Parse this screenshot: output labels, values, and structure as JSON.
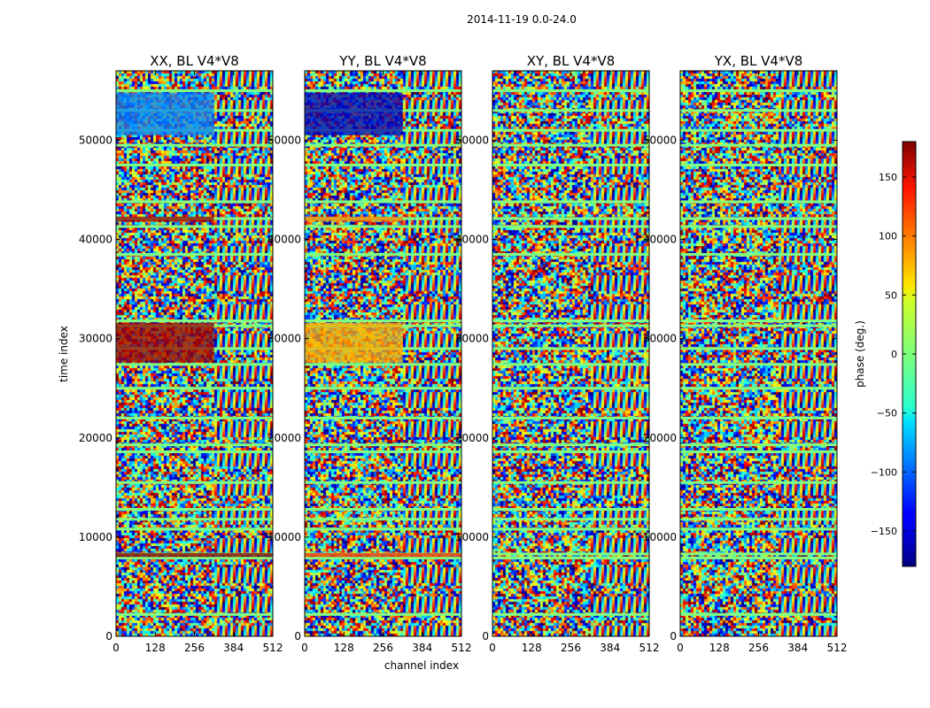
{
  "chart_data": {
    "type": "heatmap",
    "suptitle": "2014-11-19 0.0-24.0",
    "xlabel": "channel index",
    "ylabel": "time index",
    "xlim": [
      0,
      512
    ],
    "ylim": [
      0,
      57000
    ],
    "xticks": [
      0,
      128,
      256,
      384,
      512
    ],
    "yticks": [
      0,
      10000,
      20000,
      30000,
      40000,
      50000
    ],
    "ytick_labels": [
      "0",
      "10000",
      "20000",
      "30000",
      "40000",
      "50000"
    ],
    "colormap": "jet",
    "colorbar": {
      "label": "phase (deg.)",
      "range": [
        -180,
        180
      ],
      "ticks": [
        -150,
        -100,
        -50,
        0,
        50,
        100,
        150
      ],
      "tick_labels": [
        "−150",
        "−100",
        "−50",
        "0",
        "50",
        "100",
        "150"
      ]
    },
    "panels": [
      {
        "title": "XX, BL V4*V8",
        "id": "xx"
      },
      {
        "title": "YY, BL V4*V8",
        "id": "yy"
      },
      {
        "title": "XY, BL V4*V8",
        "id": "xy"
      },
      {
        "title": "YX, BL V4*V8",
        "id": "yx"
      }
    ],
    "band_rows": [
      2200,
      7900,
      8300,
      10800,
      11800,
      12800,
      15500,
      18600,
      19300,
      22000,
      25000,
      27400,
      29000,
      31300,
      31800,
      38500,
      41300,
      42100,
      43800,
      47500,
      49500,
      51000,
      53000,
      55000
    ],
    "coherent_regions": [
      {
        "panel": "xx",
        "t0": 27600,
        "t1": 31600,
        "c0": 0,
        "c1": 320,
        "phase_deg": 170
      },
      {
        "panel": "xx",
        "t0": 41800,
        "t1": 42300,
        "c0": 0,
        "c1": 320,
        "phase_deg": 170
      },
      {
        "panel": "xx",
        "t0": 8000,
        "t1": 8400,
        "c0": 0,
        "c1": 512,
        "phase_deg": 175
      },
      {
        "panel": "xx",
        "t0": 50500,
        "t1": 54800,
        "c0": 0,
        "c1": 320,
        "phase_deg": -90
      },
      {
        "panel": "yy",
        "t0": 27600,
        "t1": 31600,
        "c0": 0,
        "c1": 320,
        "phase_deg": 75
      },
      {
        "panel": "yy",
        "t0": 41800,
        "t1": 42300,
        "c0": 0,
        "c1": 320,
        "phase_deg": 90
      },
      {
        "panel": "yy",
        "t0": 8000,
        "t1": 8400,
        "c0": 0,
        "c1": 512,
        "phase_deg": 120
      },
      {
        "panel": "yy",
        "t0": 50500,
        "t1": 54800,
        "c0": 0,
        "c1": 320,
        "phase_deg": -160
      }
    ]
  }
}
